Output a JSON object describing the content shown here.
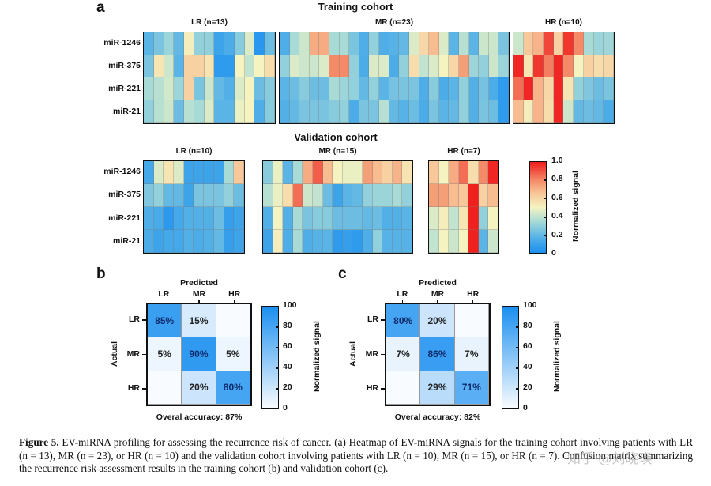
{
  "figure": {
    "panel_a_label": "a",
    "panel_b_label": "b",
    "panel_c_label": "c"
  },
  "colors": {
    "heatmap_low": "#1a8fef",
    "heatmap_mid": "#f7f5c0",
    "heatmap_high": "#ee1b1b",
    "confusion_high": "#1a8fef",
    "confusion_low": "#ffffff"
  },
  "chart_data": [
    {
      "type": "heatmap",
      "id": "training",
      "title": "Training cohort",
      "rows": [
        "miR-1246",
        "miR-375",
        "miR-221",
        "miR-21"
      ],
      "colorbar": {
        "label": "Normalized signal",
        "range": [
          0,
          1
        ],
        "ticks": [
          "0",
          "0.2",
          "0.4",
          "0.6",
          "0.8",
          "1.0"
        ]
      },
      "groups": [
        {
          "label": "LR (n=13)",
          "n": 13,
          "values": [
            [
              0.18,
              0.25,
              0.32,
              0.2,
              0.52,
              0.3,
              0.3,
              0.1,
              0.14,
              0.28,
              0.45,
              0.04,
              0.22
            ],
            [
              0.25,
              0.55,
              0.42,
              0.18,
              0.62,
              0.62,
              0.55,
              0.06,
              0.06,
              0.5,
              0.4,
              0.5,
              0.58
            ],
            [
              0.35,
              0.38,
              0.43,
              0.32,
              0.62,
              0.25,
              0.42,
              0.2,
              0.16,
              0.45,
              0.5,
              0.22,
              0.28
            ],
            [
              0.3,
              0.38,
              0.42,
              0.22,
              0.38,
              0.35,
              0.45,
              0.18,
              0.18,
              0.48,
              0.5,
              0.15,
              0.28
            ]
          ]
        },
        {
          "label": "MR (n=23)",
          "n": 23,
          "values": [
            [
              0.15,
              0.35,
              0.42,
              0.72,
              0.72,
              0.35,
              0.35,
              0.25,
              0.15,
              0.3,
              0.15,
              0.17,
              0.2,
              0.45,
              0.6,
              0.68,
              0.45,
              0.18,
              0.38,
              0.18,
              0.42,
              0.42,
              0.25
            ],
            [
              0.3,
              0.45,
              0.42,
              0.42,
              0.45,
              0.8,
              0.8,
              0.3,
              0.14,
              0.45,
              0.45,
              0.14,
              0.3,
              0.58,
              0.4,
              0.45,
              0.5,
              0.6,
              0.75,
              0.32,
              0.3,
              0.42,
              0.32
            ],
            [
              0.18,
              0.22,
              0.28,
              0.22,
              0.22,
              0.35,
              0.32,
              0.3,
              0.2,
              0.3,
              0.18,
              0.24,
              0.25,
              0.25,
              0.15,
              0.28,
              0.14,
              0.18,
              0.3,
              0.16,
              0.24,
              0.14,
              0.06
            ],
            [
              0.16,
              0.2,
              0.25,
              0.25,
              0.25,
              0.28,
              0.3,
              0.14,
              0.25,
              0.25,
              0.38,
              0.2,
              0.17,
              0.22,
              0.14,
              0.25,
              0.18,
              0.2,
              0.3,
              0.16,
              0.25,
              0.22,
              0.06
            ]
          ]
        },
        {
          "label": "HR (n=10)",
          "n": 10,
          "values": [
            [
              0.42,
              0.65,
              0.7,
              0.92,
              0.62,
              0.95,
              0.8,
              0.35,
              0.32,
              0.33
            ],
            [
              0.98,
              0.55,
              0.95,
              0.82,
              0.98,
              0.8,
              0.5,
              0.62,
              0.58,
              0.6
            ],
            [
              0.85,
              0.98,
              0.7,
              0.6,
              0.98,
              0.55,
              0.3,
              0.26,
              0.22,
              0.25
            ],
            [
              0.68,
              0.52,
              0.7,
              0.58,
              0.98,
              0.42,
              0.2,
              0.22,
              0.2,
              0.14
            ]
          ]
        }
      ]
    },
    {
      "type": "heatmap",
      "id": "validation",
      "title": "Validation cohort",
      "rows": [
        "miR-1246",
        "miR-375",
        "miR-221",
        "miR-21"
      ],
      "colorbar": {
        "label": "Normalized signal",
        "range": [
          0,
          1
        ],
        "ticks": [
          "0",
          "0.2",
          "0.4",
          "0.6",
          "0.8",
          "1.0"
        ]
      },
      "groups": [
        {
          "label": "LR (n=10)",
          "n": 10,
          "values": [
            [
              0.12,
              0.45,
              0.55,
              0.45,
              0.1,
              0.1,
              0.1,
              0.1,
              0.35,
              0.65
            ],
            [
              0.26,
              0.3,
              0.2,
              0.2,
              0.1,
              0.25,
              0.25,
              0.25,
              0.3,
              0.22
            ],
            [
              0.15,
              0.13,
              0.05,
              0.12,
              0.16,
              0.16,
              0.16,
              0.22,
              0.08,
              0.1
            ],
            [
              0.14,
              0.1,
              0.12,
              0.12,
              0.16,
              0.14,
              0.16,
              0.2,
              0.08,
              0.1
            ]
          ]
        },
        {
          "label": "MR (n=15)",
          "n": 15,
          "values": [
            [
              0.28,
              0.48,
              0.18,
              0.35,
              0.72,
              0.88,
              0.68,
              0.5,
              0.48,
              0.48,
              0.75,
              0.68,
              0.62,
              0.7,
              0.55
            ],
            [
              0.38,
              0.48,
              0.58,
              0.85,
              0.42,
              0.4,
              0.22,
              0.1,
              0.18,
              0.2,
              0.3,
              0.32,
              0.32,
              0.35,
              0.3
            ],
            [
              0.16,
              0.5,
              0.16,
              0.35,
              0.25,
              0.28,
              0.28,
              0.22,
              0.22,
              0.22,
              0.2,
              0.22,
              0.16,
              0.16,
              0.18
            ],
            [
              0.1,
              0.52,
              0.15,
              0.35,
              0.15,
              0.17,
              0.18,
              0.06,
              0.08,
              0.06,
              0.15,
              0.3,
              0.17,
              0.17,
              0.17
            ]
          ]
        },
        {
          "label": "HR (n=7)",
          "n": 7,
          "values": [
            [
              0.65,
              0.5,
              0.72,
              0.85,
              0.58,
              0.8,
              0.98
            ],
            [
              0.75,
              0.75,
              0.68,
              0.65,
              0.99,
              0.62,
              0.68
            ],
            [
              0.45,
              0.52,
              0.4,
              0.55,
              0.99,
              0.3,
              0.5
            ],
            [
              0.4,
              0.5,
              0.42,
              0.5,
              0.99,
              0.18,
              0.42
            ]
          ]
        }
      ]
    },
    {
      "type": "heatmap",
      "id": "confusion_training",
      "title": "Predicted",
      "xlabel": "Predicted",
      "ylabel": "Actual",
      "x_categories": [
        "LR",
        "MR",
        "HR"
      ],
      "y_categories": [
        "LR",
        "MR",
        "HR"
      ],
      "values": [
        [
          85,
          15,
          0
        ],
        [
          5,
          90,
          5
        ],
        [
          0,
          20,
          80
        ]
      ],
      "cell_labels": [
        [
          "85%",
          "15%",
          ""
        ],
        [
          "5%",
          "90%",
          "5%"
        ],
        [
          "",
          "20%",
          "80%"
        ]
      ],
      "colorbar": {
        "label": "Normalized signal",
        "range": [
          0,
          100
        ],
        "ticks": [
          "0",
          "20",
          "40",
          "60",
          "80",
          "100"
        ]
      },
      "footer": "Overal accuracy: 87%"
    },
    {
      "type": "heatmap",
      "id": "confusion_validation",
      "title": "Predicted",
      "xlabel": "Predicted",
      "ylabel": "Actual",
      "x_categories": [
        "LR",
        "MR",
        "HR"
      ],
      "y_categories": [
        "LR",
        "MR",
        "HR"
      ],
      "values": [
        [
          80,
          20,
          0
        ],
        [
          7,
          86,
          7
        ],
        [
          0,
          29,
          71
        ]
      ],
      "cell_labels": [
        [
          "80%",
          "20%",
          ""
        ],
        [
          "7%",
          "86%",
          "7%"
        ],
        [
          "",
          "29%",
          "71%"
        ]
      ],
      "colorbar": {
        "label": "Normalized signal",
        "range": [
          0,
          100
        ],
        "ticks": [
          "0",
          "20",
          "40",
          "60",
          "80",
          "100"
        ]
      },
      "footer": "Overal accuracy: 82%"
    }
  ],
  "caption": {
    "label": "Figure 5.",
    "text": " EV-miRNA profiling for assessing the recurrence risk of cancer. (a) Heatmap of EV-miRNA signals for the training cohort involving patients with LR (n = 13), MR (n = 23), or HR (n = 10) and the validation cohort involving patients with LR (n = 10), MR (n = 15), or HR (n = 7). Confusion matrix summarizing the recurrence risk assessment results in the training cohort (b) and validation cohort (c)."
  },
  "watermark": "知乎 @刘晓瑛"
}
